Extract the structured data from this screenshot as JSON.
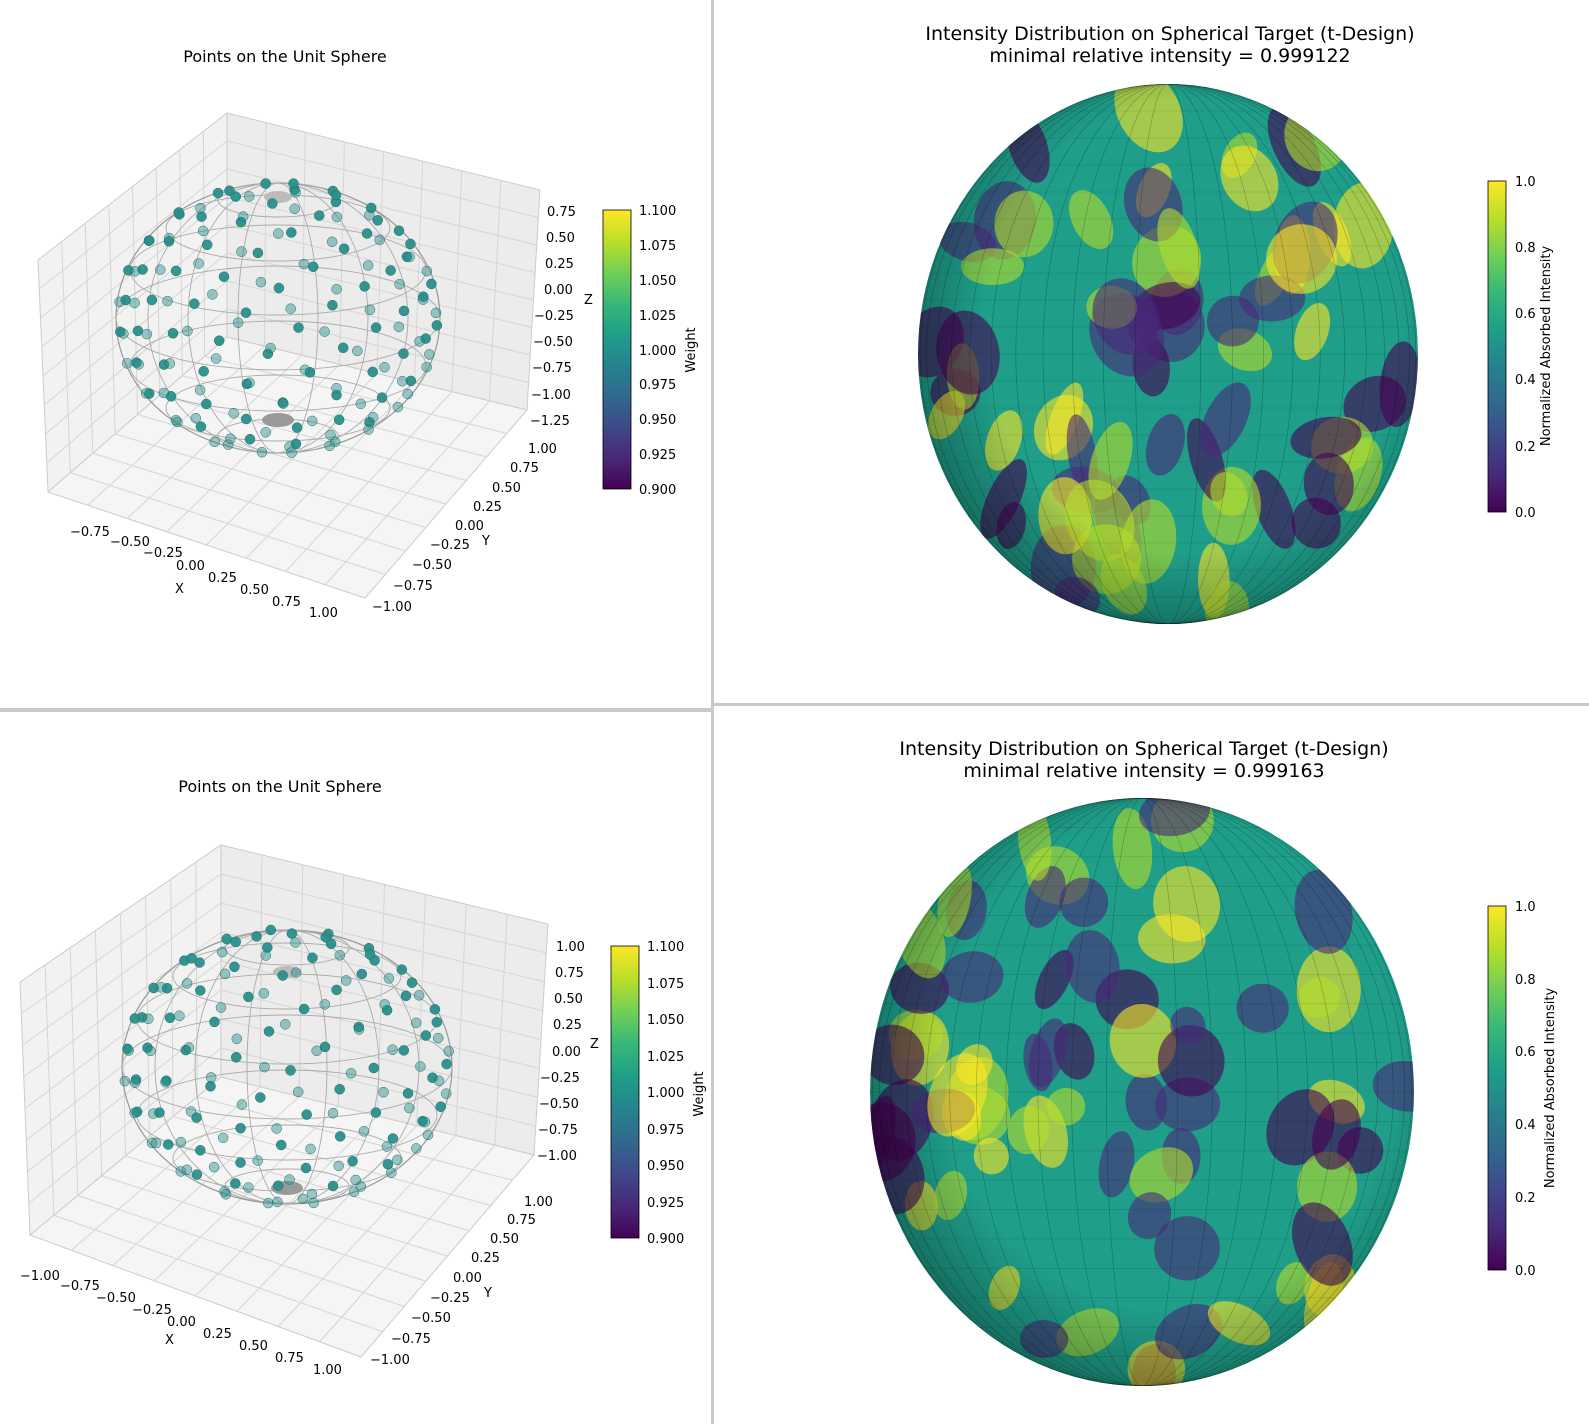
{
  "colors": {
    "viridis": [
      "#440154",
      "#482878",
      "#3e4989",
      "#31688e",
      "#26828e",
      "#1f9e89",
      "#35b779",
      "#6ece58",
      "#b5de2b",
      "#fde725"
    ],
    "point": "#2a8f8a",
    "wire": "#9a9a9a",
    "pane": "#f2f2f2",
    "grid": "#d9d9d9"
  },
  "chart_data": [
    {
      "type": "scatter",
      "title": "Points on the Unit Sphere",
      "xlabel": "X",
      "ylabel": "Y",
      "zlabel": "Z",
      "x_ticks": [
        "−0.75",
        "−0.50",
        "−0.25",
        "0.00",
        "0.25",
        "0.50",
        "0.75",
        "1.00"
      ],
      "y_ticks": [
        "1.00",
        "0.75",
        "0.50",
        "0.25",
        "0.00",
        "−0.25",
        "−0.50",
        "−0.75",
        "−1.00"
      ],
      "z_ticks": [
        "0.75",
        "0.50",
        "0.25",
        "0.00",
        "−0.25",
        "−0.50",
        "−0.75",
        "−1.00",
        "−1.25"
      ],
      "colorbar": {
        "label": "Weight",
        "ticks": [
          "1.100",
          "1.075",
          "1.050",
          "1.025",
          "1.000",
          "0.975",
          "0.950",
          "0.925",
          "0.900"
        ],
        "range": [
          0.9,
          1.1
        ]
      }
    },
    {
      "type": "heatmap",
      "title": "Intensity Distribution on Spherical Target (t-Design)",
      "subtitle": "minimal relative intensity = 0.999122",
      "colorbar": {
        "label": "Normalized Absorbed Intensity",
        "ticks": [
          "1.0",
          "0.8",
          "0.6",
          "0.4",
          "0.2",
          "0.0"
        ],
        "range": [
          0,
          1
        ]
      }
    },
    {
      "type": "scatter",
      "title": "Points on the Unit Sphere",
      "xlabel": "X",
      "ylabel": "Y",
      "zlabel": "Z",
      "x_ticks": [
        "−1.00",
        "−0.75",
        "−0.50",
        "−0.25",
        "0.00",
        "0.25",
        "0.50",
        "0.75",
        "1.00"
      ],
      "y_ticks": [
        "1.00",
        "0.75",
        "0.50",
        "0.25",
        "0.00",
        "−0.25",
        "−0.50",
        "−0.75",
        "−1.00"
      ],
      "z_ticks": [
        "1.00",
        "0.75",
        "0.50",
        "0.25",
        "0.00",
        "−0.25",
        "−0.50",
        "−0.75",
        "−1.00"
      ],
      "colorbar": {
        "label": "Weight",
        "ticks": [
          "1.100",
          "1.075",
          "1.050",
          "1.025",
          "1.000",
          "0.975",
          "0.950",
          "0.925",
          "0.900"
        ],
        "range": [
          0.9,
          1.1
        ]
      }
    },
    {
      "type": "heatmap",
      "title": "Intensity Distribution on Spherical Target (t-Design)",
      "subtitle": "minimal relative intensity = 0.999163",
      "colorbar": {
        "label": "Normalized Absorbed Intensity",
        "ticks": [
          "1.0",
          "0.8",
          "0.6",
          "0.4",
          "0.2",
          "0.0"
        ],
        "range": [
          0,
          1
        ]
      }
    }
  ]
}
